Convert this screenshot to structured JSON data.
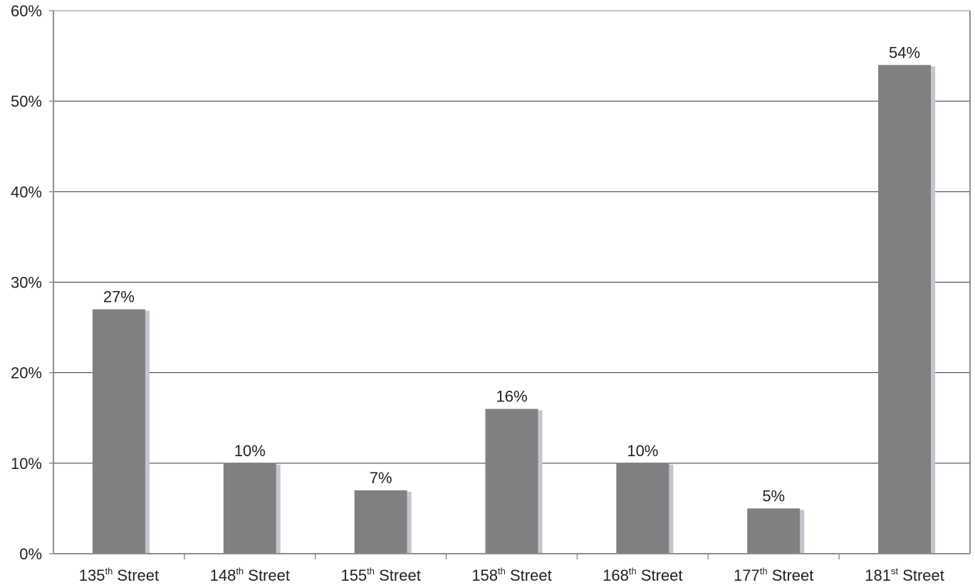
{
  "chart_data": {
    "type": "bar",
    "title": "",
    "xlabel": "",
    "ylabel": "",
    "ylim": [
      0,
      60
    ],
    "grid": true,
    "yticks": [
      {
        "value": 0,
        "label": "0%"
      },
      {
        "value": 10,
        "label": "10%"
      },
      {
        "value": 20,
        "label": "20%"
      },
      {
        "value": 30,
        "label": "30%"
      },
      {
        "value": 40,
        "label": "40%"
      },
      {
        "value": 50,
        "label": "50%"
      },
      {
        "value": 60,
        "label": "60%"
      }
    ],
    "categories": [
      {
        "num": "135",
        "sup": "th",
        "rest": " Street"
      },
      {
        "num": "148",
        "sup": "th",
        "rest": " Street"
      },
      {
        "num": "155",
        "sup": "th",
        "rest": " Street"
      },
      {
        "num": "158",
        "sup": "th",
        "rest": " Street"
      },
      {
        "num": "168",
        "sup": "th",
        "rest": " Street"
      },
      {
        "num": "177",
        "sup": "th",
        "rest": " Street"
      },
      {
        "num": "181",
        "sup": "st",
        "rest": " Street"
      }
    ],
    "values": [
      27,
      10,
      7,
      16,
      10,
      5,
      54
    ],
    "data_labels": [
      "27%",
      "10%",
      "7%",
      "16%",
      "10%",
      "5%",
      "54%"
    ],
    "colors": {
      "bar": "#808083",
      "bar_shadow": "#c3c6cc",
      "grid": "#333333",
      "axis": "#8a8f95"
    }
  }
}
